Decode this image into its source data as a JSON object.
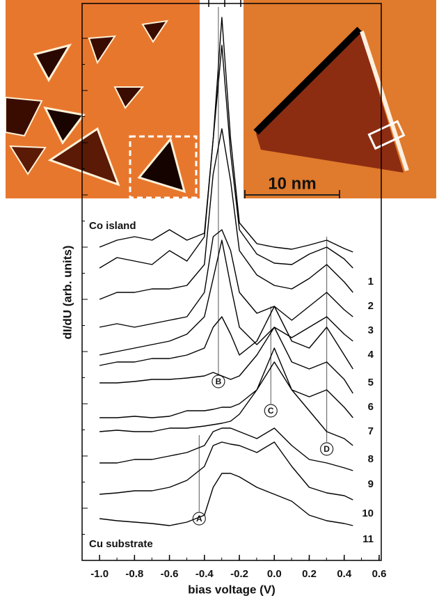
{
  "chart_data": {
    "type": "line",
    "xlabel": "bias voltage (V)",
    "ylabel": "dI/dU (arb. units)",
    "x": [
      -1.0,
      -0.9,
      -0.8,
      -0.7,
      -0.6,
      -0.5,
      -0.4,
      -0.35,
      -0.3,
      -0.25,
      -0.2,
      -0.1,
      0,
      0.1,
      0.2,
      0.3,
      0.4,
      0.45
    ],
    "xlim": [
      -1.1,
      0.6
    ],
    "xticks": [
      {
        "value": -1.0,
        "label": "-1.0"
      },
      -0.8,
      -0.6,
      -0.4,
      -0.2,
      {
        "value": 0,
        "label": "0.0"
      },
      0.2,
      0.4,
      0.6
    ],
    "ylim": [
      0,
      80
    ],
    "series": [
      {
        "color": "#000000",
        "values": [
          45,
          46,
          46.5,
          46,
          47.5,
          46,
          47,
          60.5,
          78,
          60.5,
          48.5,
          45.5,
          45,
          44.7,
          45.3,
          46,
          44.8,
          44.3
        ]
      },
      {
        "name": "1",
        "color": "#000000",
        "values": [
          42,
          43.5,
          43,
          42.5,
          44.5,
          43,
          46.5,
          60.5,
          74,
          58.5,
          47.5,
          44,
          42.7,
          42.5,
          44,
          45,
          43.3,
          42
        ]
      },
      {
        "name": "2",
        "color": "#000000",
        "values": [
          37.5,
          38.5,
          38.5,
          39,
          39,
          39.5,
          42.5,
          55.5,
          62,
          54.5,
          44.5,
          41,
          39.5,
          39,
          40.5,
          42.5,
          40,
          38.5
        ]
      },
      {
        "name": "3",
        "color": "#000000",
        "values": [
          33.5,
          34,
          33.5,
          34,
          34.5,
          35,
          38.5,
          46.5,
          47.5,
          44.5,
          38.5,
          35.5,
          36.5,
          34.5,
          36.5,
          38.5,
          36,
          35
        ]
      },
      {
        "name": "4",
        "color": "#000000",
        "values": [
          29.5,
          30,
          30.5,
          31,
          31.5,
          32.5,
          35,
          40.5,
          46,
          39.5,
          33.5,
          31,
          33.5,
          32,
          33.5,
          35,
          32.5,
          31.5
        ]
      },
      {
        "name": "5",
        "color": "#000000",
        "values": [
          28,
          28.5,
          28.5,
          29,
          29,
          29.5,
          30.5,
          33.5,
          35,
          32.5,
          29.5,
          31.5,
          36.5,
          31.5,
          30.5,
          33.5,
          29.5,
          27.5
        ]
      },
      {
        "name": "6",
        "color": "#000000",
        "values": [
          25.5,
          25.5,
          25.7,
          26,
          26,
          26.2,
          26.5,
          27,
          26.5,
          26,
          26.5,
          29.5,
          33.5,
          28.5,
          27.5,
          28.5,
          26,
          24
        ]
      },
      {
        "name": "7",
        "color": "#000000",
        "values": [
          20.5,
          20.5,
          20.7,
          20.5,
          20.7,
          21.5,
          21.5,
          21.7,
          22,
          22,
          22.5,
          24.5,
          28.5,
          24.5,
          23.5,
          24.5,
          22,
          20.5
        ]
      },
      {
        "name": "8",
        "color": "#000000",
        "values": [
          18.5,
          18.7,
          18.5,
          18.5,
          19,
          19,
          19.3,
          19.5,
          19.7,
          20,
          21,
          24.5,
          30.5,
          24.5,
          21.5,
          18.5,
          17.5,
          16.5
        ]
      },
      {
        "name": "9",
        "color": "#000000",
        "values": [
          14,
          14,
          14.5,
          14.5,
          15,
          15.5,
          16.5,
          18.5,
          19,
          19,
          18.5,
          17.5,
          19,
          16.5,
          14.5,
          14,
          13.3,
          12.9
        ]
      },
      {
        "name": "10",
        "color": "#000000",
        "values": [
          9.5,
          9.7,
          10,
          10,
          10.5,
          11.5,
          13.5,
          16.5,
          17,
          16.7,
          16.5,
          15.5,
          17,
          13.5,
          10.5,
          9.7,
          9.3,
          8.7
        ]
      },
      {
        "name": "11",
        "color": "#000000",
        "values": [
          6,
          5.7,
          5.5,
          5.3,
          5,
          5.5,
          6.5,
          10.5,
          12.5,
          12.5,
          12,
          10.5,
          9.5,
          8.5,
          6.5,
          5.7,
          5.3,
          5
        ]
      }
    ],
    "markers": [
      {
        "label": "A",
        "x": -0.43
      },
      {
        "label": "B",
        "x": -0.32
      },
      {
        "label": "C",
        "x": -0.02
      },
      {
        "label": "D",
        "x": 0.3
      }
    ],
    "annotations": [
      "Co island",
      "Cu substrate",
      "10 nm"
    ]
  }
}
